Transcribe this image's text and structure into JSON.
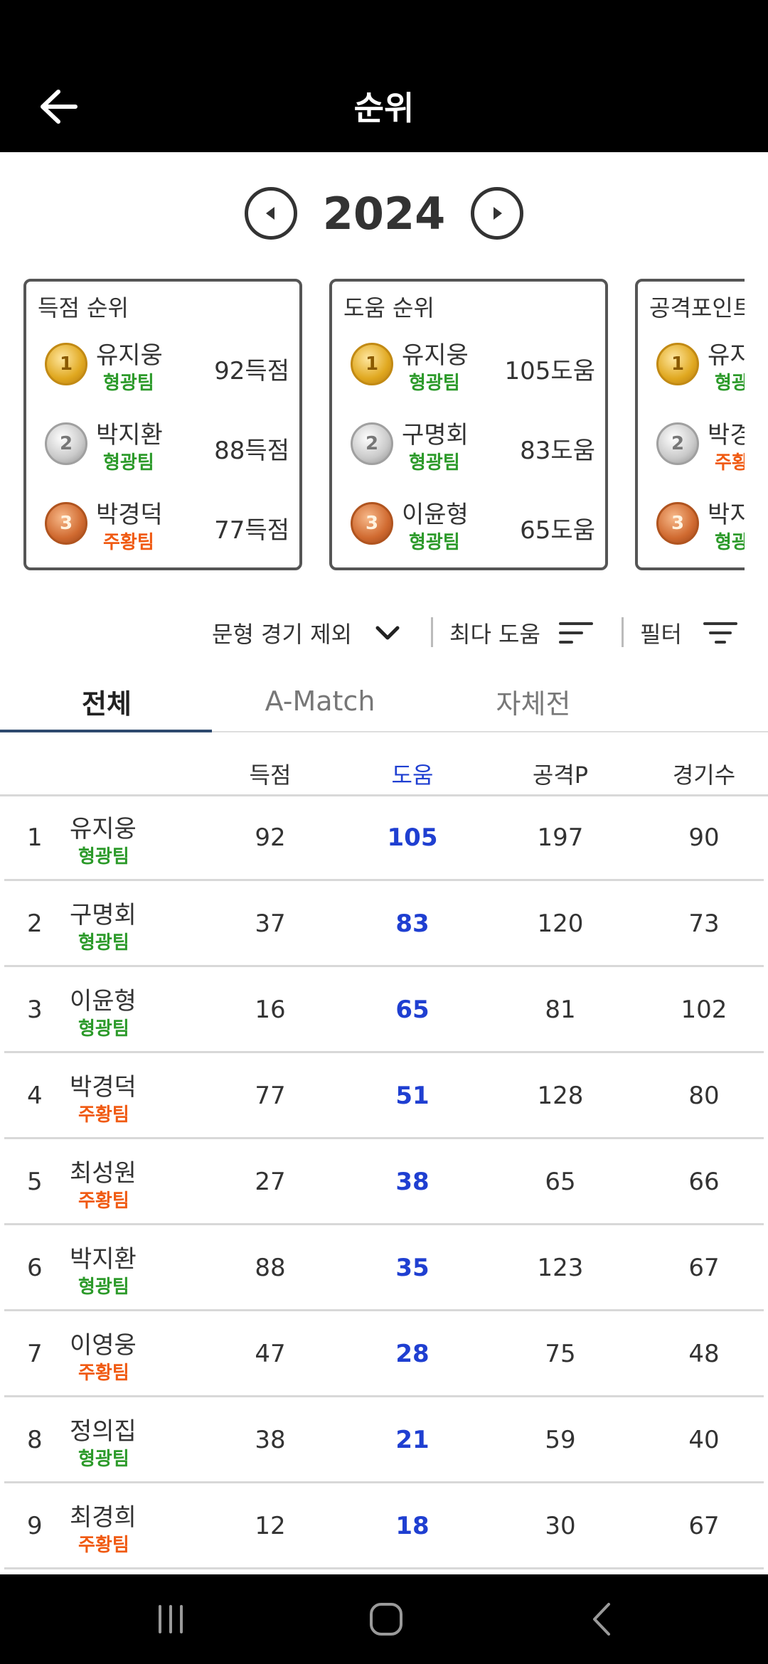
{
  "header": {
    "title": "순위"
  },
  "year_selector": {
    "year": "2024"
  },
  "cards": [
    {
      "title": "득점 순위",
      "items": [
        {
          "medal": "1",
          "name": "유지웅",
          "team": "형광팀",
          "team_color": "green",
          "value": "92득점"
        },
        {
          "medal": "2",
          "name": "박지환",
          "team": "형광팀",
          "team_color": "green",
          "value": "88득점"
        },
        {
          "medal": "3",
          "name": "박경덕",
          "team": "주황팀",
          "team_color": "orange",
          "value": "77득점"
        }
      ]
    },
    {
      "title": "도움 순위",
      "items": [
        {
          "medal": "1",
          "name": "유지웅",
          "team": "형광팀",
          "team_color": "green",
          "value": "105도움"
        },
        {
          "medal": "2",
          "name": "구명회",
          "team": "형광팀",
          "team_color": "green",
          "value": "83도움"
        },
        {
          "medal": "3",
          "name": "이윤형",
          "team": "형광팀",
          "team_color": "green",
          "value": "65도움"
        }
      ]
    },
    {
      "title": "공격포인트",
      "items": [
        {
          "medal": "1",
          "name": "유지",
          "team": "형광",
          "team_color": "green",
          "value": ""
        },
        {
          "medal": "2",
          "name": "박경",
          "team": "주황",
          "team_color": "orange",
          "value": ""
        },
        {
          "medal": "3",
          "name": "박지",
          "team": "형광",
          "team_color": "green",
          "value": ""
        }
      ]
    }
  ],
  "filters": {
    "exclude_label": "문형 경기 제외",
    "sort_label": "최다 도움",
    "filter_label": "필터"
  },
  "tabs": [
    {
      "label": "전체",
      "active": true
    },
    {
      "label": "A-Match",
      "active": false
    },
    {
      "label": "자체전",
      "active": false
    }
  ],
  "table": {
    "headers": {
      "goals": "득점",
      "assists": "도움",
      "points": "공격P",
      "games": "경기수"
    },
    "rows": [
      {
        "rank": "1",
        "name": "유지웅",
        "team": "형광팀",
        "team_color": "green",
        "goals": "92",
        "assists": "105",
        "points": "197",
        "games": "90"
      },
      {
        "rank": "2",
        "name": "구명회",
        "team": "형광팀",
        "team_color": "green",
        "goals": "37",
        "assists": "83",
        "points": "120",
        "games": "73"
      },
      {
        "rank": "3",
        "name": "이윤형",
        "team": "형광팀",
        "team_color": "green",
        "goals": "16",
        "assists": "65",
        "points": "81",
        "games": "102"
      },
      {
        "rank": "4",
        "name": "박경덕",
        "team": "주황팀",
        "team_color": "orange",
        "goals": "77",
        "assists": "51",
        "points": "128",
        "games": "80"
      },
      {
        "rank": "5",
        "name": "최성원",
        "team": "주황팀",
        "team_color": "orange",
        "goals": "27",
        "assists": "38",
        "points": "65",
        "games": "66"
      },
      {
        "rank": "6",
        "name": "박지환",
        "team": "형광팀",
        "team_color": "green",
        "goals": "88",
        "assists": "35",
        "points": "123",
        "games": "67"
      },
      {
        "rank": "7",
        "name": "이영웅",
        "team": "주황팀",
        "team_color": "orange",
        "goals": "47",
        "assists": "28",
        "points": "75",
        "games": "48"
      },
      {
        "rank": "8",
        "name": "정의집",
        "team": "형광팀",
        "team_color": "green",
        "goals": "38",
        "assists": "21",
        "points": "59",
        "games": "40"
      },
      {
        "rank": "9",
        "name": "최경희",
        "team": "주황팀",
        "team_color": "orange",
        "goals": "12",
        "assists": "18",
        "points": "30",
        "games": "67"
      }
    ]
  },
  "colors": {
    "green_team": "#2c9a2a",
    "orange_team": "#f05a12",
    "assist_highlight": "#1f3fd1",
    "tab_indicator": "#2e4a6e"
  },
  "icons": {
    "back": "arrow-left-icon",
    "prev_year": "caret-left-circle-icon",
    "next_year": "caret-right-circle-icon",
    "dropdown": "chevron-down-icon",
    "sort": "sort-lines-icon",
    "filter": "filter-lines-icon",
    "nav_recent": "recent-apps-icon",
    "nav_home": "home-icon",
    "nav_back": "nav-back-icon"
  }
}
